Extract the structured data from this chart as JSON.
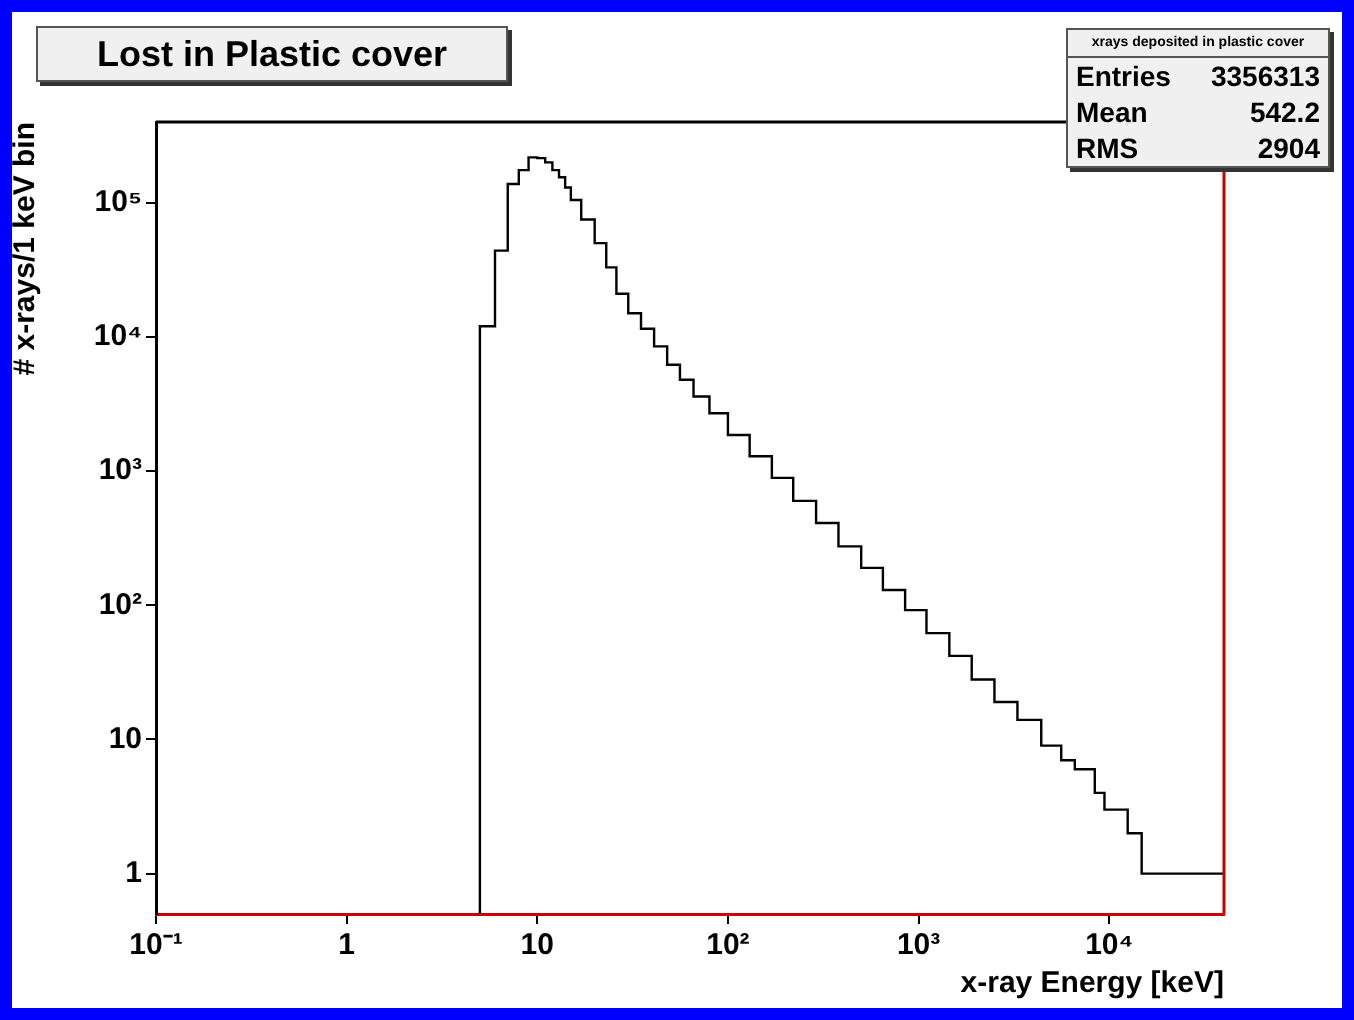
{
  "chart_data": {
    "type": "step",
    "title": "Lost in Plastic cover",
    "xlabel": "x-ray Energy [keV]",
    "ylabel": "# x-rays/1 keV bin",
    "annotations": [
      "xrays deposited in plastic cover",
      "Entries 3356313",
      "Mean 542.2",
      "RMS 2904"
    ],
    "x": [
      5,
      5,
      6,
      7,
      8,
      9,
      10,
      11,
      12,
      13,
      14,
      15,
      17,
      20,
      23,
      26,
      30,
      35,
      41,
      48,
      56,
      66,
      80,
      100,
      130,
      170,
      220,
      290,
      380,
      500,
      650,
      850,
      1100,
      1450,
      1900,
      2500,
      3300,
      4400,
      5600,
      6600,
      8400,
      9440,
      12500,
      14800,
      24900,
      40000
    ],
    "values": [
      0.5,
      250,
      12000,
      44000,
      138000,
      175000,
      218000,
      215000,
      200000,
      175000,
      155000,
      130000,
      105000,
      75000,
      50000,
      33000,
      21000,
      15000,
      11500,
      8500,
      6200,
      4800,
      3600,
      2700,
      1860,
      1290,
      890,
      600,
      410,
      275,
      190,
      130,
      92,
      62,
      42,
      28,
      19,
      14,
      9,
      7,
      6,
      4,
      3,
      2,
      1,
      1
    ],
    "color": "#000000",
    "log": "xy",
    "xlim": [
      0.1,
      40000
    ],
    "ylim": [
      0.5,
      400000
    ],
    "xticks": [
      {
        "value": 0.1,
        "label": "10⁻¹"
      },
      1,
      10,
      {
        "value": 100,
        "label": "10²"
      },
      {
        "value": 1000,
        "label": "10³"
      },
      {
        "value": 10000,
        "label": "10⁴"
      }
    ],
    "yticks": [
      1,
      10,
      {
        "value": 100,
        "label": "10²"
      },
      {
        "value": 1000,
        "label": "10³"
      },
      {
        "value": 10000,
        "label": "10⁴"
      },
      {
        "value": 100000,
        "label": "10⁵"
      }
    ]
  }
}
